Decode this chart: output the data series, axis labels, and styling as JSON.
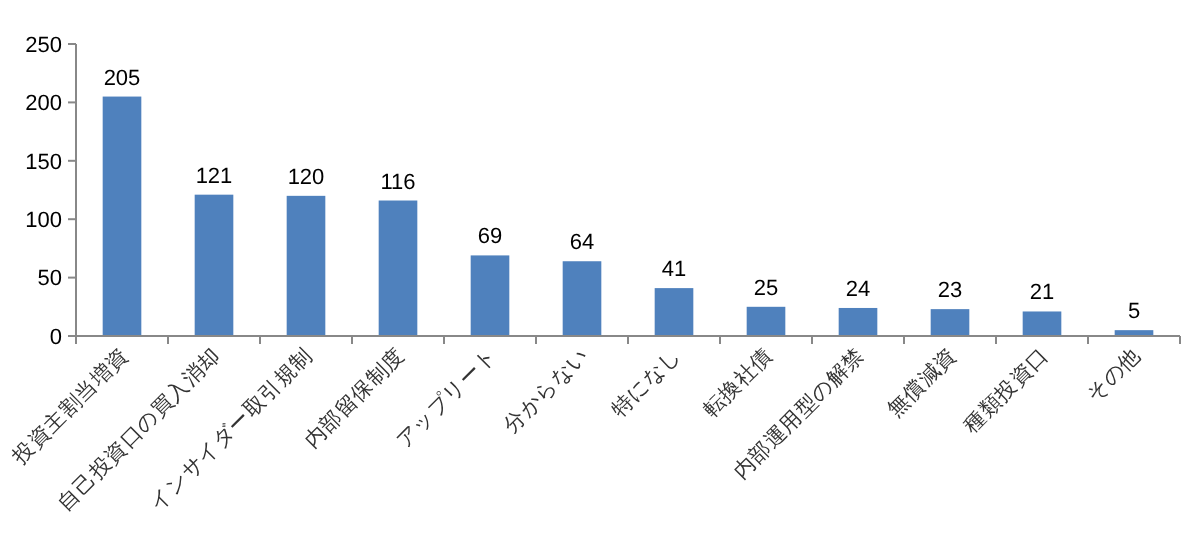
{
  "chart_data": {
    "type": "bar",
    "categories": [
      "投資主割当増資",
      "自己投資口の買入消却",
      "インサイダー取引規制",
      "内部留保制度",
      "アップリート",
      "分からない",
      "特になし",
      "転換社債",
      "内部運用型の解禁",
      "無償減資",
      "種類投資口",
      "その他"
    ],
    "values": [
      205,
      121,
      120,
      116,
      69,
      64,
      41,
      25,
      24,
      23,
      21,
      5
    ],
    "color": "#4f81bd",
    "ylim": [
      0,
      250
    ],
    "yticks": [
      0,
      50,
      100,
      150,
      200,
      250
    ],
    "data_labels": true,
    "grid": false
  }
}
